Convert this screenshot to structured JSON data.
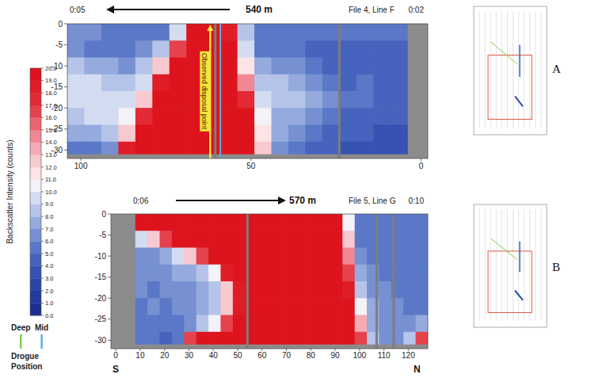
{
  "chart_data": [
    {
      "type": "heatmap",
      "panel": "A",
      "title": "File 4, Line F",
      "distance_label": "540 m",
      "start_time": "0:05",
      "end_time": "0:02",
      "x": [
        101.5,
        96.5,
        91.5,
        86.5,
        81.5,
        76.5,
        71.5,
        66.5,
        61.5,
        56.5,
        51.5,
        46.5,
        41.5,
        36.5,
        31.5,
        26.5,
        21.5,
        16.5,
        11.5,
        6.5,
        1.5
      ],
      "y": [
        -2,
        -6,
        -10,
        -14,
        -18,
        -22,
        -26,
        -30
      ],
      "cells": [
        [
          6,
          6,
          5,
          5,
          5,
          5,
          9,
          20,
          20,
          18,
          8,
          5,
          5,
          5,
          5,
          5,
          5,
          5,
          5,
          5,
          null
        ],
        [
          6,
          5,
          5,
          5,
          6,
          8,
          16,
          20,
          20,
          20,
          9,
          5,
          5,
          5,
          4,
          4,
          4,
          4,
          4,
          4,
          null
        ],
        [
          8,
          7,
          7,
          6,
          8,
          12,
          20,
          20,
          20,
          20,
          11,
          7,
          6,
          6,
          5,
          4,
          4,
          4,
          4,
          4,
          null
        ],
        [
          9,
          9,
          8,
          8,
          9,
          18,
          20,
          20,
          20,
          20,
          14,
          8,
          8,
          7,
          6,
          5,
          4,
          5,
          4,
          4,
          null
        ],
        [
          9,
          9,
          9,
          9,
          12,
          20,
          20,
          20,
          20,
          20,
          17,
          9,
          8,
          8,
          7,
          6,
          5,
          5,
          4,
          4,
          null
        ],
        [
          8,
          9,
          9,
          10,
          17,
          20,
          20,
          20,
          20,
          20,
          19,
          10,
          7,
          7,
          6,
          5,
          4,
          4,
          4,
          4,
          null
        ],
        [
          7,
          7,
          8,
          12,
          20,
          20,
          20,
          20,
          20,
          20,
          20,
          11,
          7,
          6,
          5,
          4,
          4,
          4,
          3,
          3,
          null
        ],
        [
          5,
          5,
          6,
          18,
          20,
          20,
          20,
          20,
          20,
          20,
          20,
          12,
          6,
          5,
          4,
          4,
          3,
          3,
          3,
          3,
          null
        ]
      ],
      "xlim": [
        104,
        -2
      ],
      "ylim": [
        -32,
        0
      ],
      "xticks": [
        100,
        50,
        0
      ],
      "yticks": [
        0,
        -5,
        -10,
        -15,
        -20,
        -25,
        -30
      ],
      "seabed_depth": -31,
      "gaps": [
        60.5,
        24
      ],
      "drogues": [
        {
          "name": "Mid",
          "x": 59
        }
      ],
      "annotation": {
        "text": "Observed disposal point",
        "x": 62
      }
    },
    {
      "type": "heatmap",
      "panel": "B",
      "title": "File 5, Line G",
      "distance_label": "570 m",
      "start_time": "0:06",
      "end_time": "0:10",
      "x_start_label": "S",
      "x_end_label": "N",
      "x": [
        0.5,
        5.5,
        10.5,
        15.5,
        20.5,
        25.5,
        30.5,
        35.5,
        40.5,
        45.5,
        50.5,
        55.5,
        60.5,
        65.5,
        70.5,
        75.5,
        80.5,
        85.5,
        90.5,
        95.5,
        100.5,
        105.5,
        110.5,
        115.5,
        120.5,
        125.5
      ],
      "y": [
        -2,
        -6,
        -10,
        -14,
        -18,
        -22,
        -26,
        -30
      ],
      "cells": [
        [
          null,
          null,
          20,
          20,
          20,
          20,
          20,
          20,
          20,
          20,
          20,
          20,
          20,
          20,
          20,
          20,
          20,
          20,
          20,
          10,
          5,
          5,
          5,
          5,
          5,
          5
        ],
        [
          null,
          null,
          9,
          12,
          16,
          20,
          20,
          20,
          20,
          20,
          20,
          20,
          20,
          20,
          20,
          20,
          20,
          20,
          20,
          12,
          5,
          5,
          5,
          5,
          5,
          5
        ],
        [
          null,
          null,
          6,
          6,
          7,
          9,
          12,
          16,
          20,
          20,
          20,
          20,
          20,
          20,
          20,
          20,
          20,
          20,
          20,
          14,
          6,
          5,
          5,
          5,
          5,
          5
        ],
        [
          null,
          null,
          6,
          6,
          6,
          7,
          7,
          8,
          10,
          18,
          20,
          20,
          20,
          20,
          20,
          20,
          20,
          20,
          20,
          16,
          7,
          6,
          5,
          5,
          5,
          5
        ],
        [
          null,
          null,
          6,
          5,
          6,
          6,
          6,
          7,
          8,
          12,
          18,
          20,
          20,
          20,
          20,
          20,
          20,
          20,
          20,
          18,
          8,
          6,
          6,
          5,
          5,
          5
        ],
        [
          null,
          null,
          5,
          6,
          5,
          6,
          6,
          7,
          8,
          12,
          18,
          20,
          20,
          20,
          20,
          20,
          20,
          20,
          20,
          20,
          10,
          7,
          6,
          6,
          5,
          5
        ],
        [
          null,
          null,
          5,
          5,
          5,
          5,
          6,
          8,
          10,
          16,
          20,
          20,
          20,
          20,
          20,
          20,
          20,
          20,
          20,
          20,
          13,
          7,
          6,
          6,
          6,
          7
        ],
        [
          null,
          null,
          5,
          5,
          4,
          5,
          16,
          20,
          20,
          20,
          20,
          20,
          20,
          20,
          20,
          20,
          20,
          20,
          20,
          20,
          16,
          8,
          6,
          6,
          8,
          16
        ]
      ],
      "xlim": [
        -2,
        128
      ],
      "ylim": [
        -32,
        0
      ],
      "xticks": [
        0,
        10,
        20,
        30,
        40,
        50,
        60,
        70,
        80,
        90,
        100,
        110,
        120
      ],
      "yticks": [
        0,
        -5,
        -10,
        -15,
        -20,
        -25,
        -30
      ],
      "seabed_depth": -31,
      "gaps": [
        54,
        107,
        114
      ]
    }
  ],
  "colorbar": {
    "title": "Backscatter Intensity (counts)",
    "range": [
      0,
      20
    ],
    "colors": [
      "#1c2f8f",
      "#23399c",
      "#2b45a8",
      "#3652b3",
      "#4663bd",
      "#5a78c7",
      "#7690d2",
      "#95aadd",
      "#b5c4e8",
      "#d4dcf2",
      "#f2f2f8",
      "#fbe3e6",
      "#f8c9ce",
      "#f4aab2",
      "#ef8893",
      "#ea6470",
      "#e6424e",
      "#e32a35",
      "#e01d27",
      "#dd141d"
    ],
    "ticks": [
      {
        "value": 20,
        "label": "20.0"
      },
      {
        "value": 19,
        "label": "19.0"
      },
      {
        "value": 18,
        "label": "18.0"
      },
      {
        "value": 17,
        "label": "17.0"
      },
      {
        "value": 16,
        "label": "16.0"
      },
      {
        "value": 15,
        "label": "15.0"
      },
      {
        "value": 14,
        "label": "14.0"
      },
      {
        "value": 13,
        "label": "13.0"
      },
      {
        "value": 12,
        "label": "12.0"
      },
      {
        "value": 11,
        "label": "11.0"
      },
      {
        "value": 10,
        "label": "10.0"
      },
      {
        "value": 9,
        "label": "9.0"
      },
      {
        "value": 8,
        "label": "8.0"
      },
      {
        "value": 7,
        "label": "7.0"
      },
      {
        "value": 6,
        "label": "6.0"
      },
      {
        "value": 5,
        "label": "5.0"
      },
      {
        "value": 4,
        "label": "4.0"
      },
      {
        "value": 3,
        "label": "3.0"
      },
      {
        "value": 2,
        "label": "2.0"
      },
      {
        "value": 1,
        "label": "1.0"
      },
      {
        "value": 0,
        "label": "0.0"
      }
    ]
  },
  "legend_drogue": {
    "title": "Drogue Position",
    "series": [
      {
        "name": "Deep",
        "color": "#7ccf4a"
      },
      {
        "name": "Mid",
        "color": "#5aaee0"
      }
    ]
  }
}
